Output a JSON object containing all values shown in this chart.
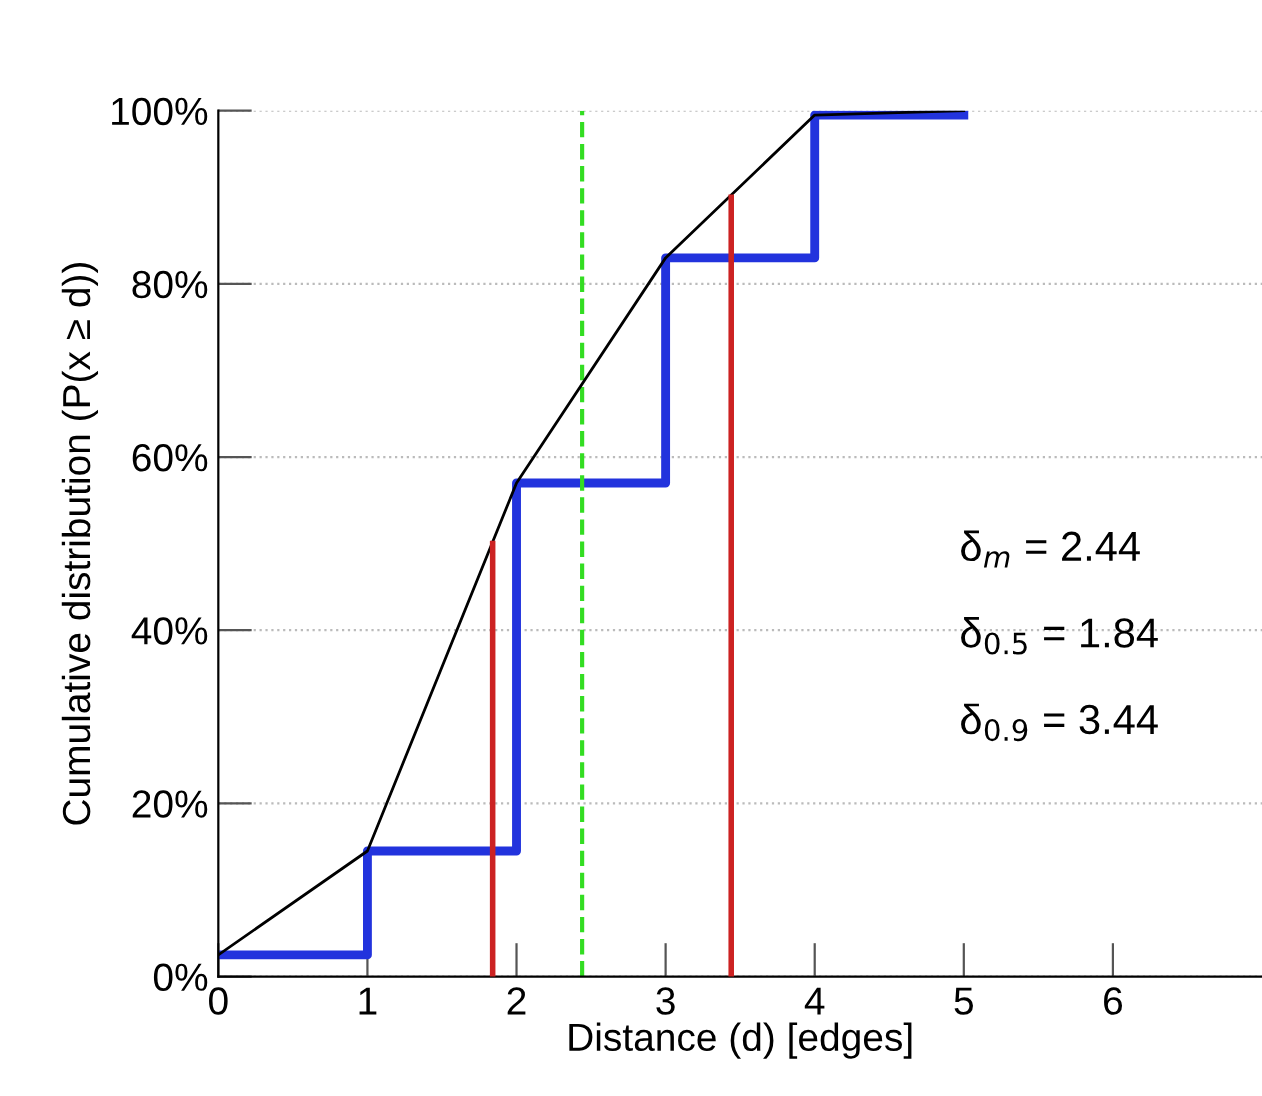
{
  "chart_data": {
    "type": "line",
    "xlabel": "Distance (d) [edges]",
    "ylabel": "Cumulative distribution (P(x ≥ d))",
    "series": [
      {
        "color": "#000000",
        "x": [
          0,
          1,
          2,
          3,
          4,
          5
        ],
        "values": [
          2.5,
          14.5,
          57,
          83,
          99.5,
          100
        ]
      },
      {
        "type": "step",
        "color": "#2233dd",
        "x": [
          0,
          1,
          2,
          3,
          4,
          5
        ],
        "values": [
          2.5,
          14.5,
          57,
          83,
          99.5,
          99.5
        ]
      },
      {
        "color": "#cc2222",
        "x": [
          1.84,
          1.84
        ],
        "values": [
          0,
          50
        ]
      },
      {
        "color": "#cc2222",
        "x": [
          3.44,
          3.44
        ],
        "values": [
          0,
          90
        ]
      }
    ],
    "ref_lines": [
      {
        "axis": "x",
        "value": 2.44,
        "color": "#33dd22",
        "line_style": "dashed"
      }
    ],
    "annotations": [
      "δ$_{m}$ = 2.44",
      "δ$_{0.5}$ = 1.84",
      "δ$_{0.9}$ = 3.44"
    ],
    "xlim": [
      0,
      7
    ],
    "ylim": [
      0,
      100
    ],
    "xticks": [
      0,
      1,
      2,
      3,
      4,
      5,
      6
    ],
    "yticks": [
      {
        "value": 0,
        "label": "0%"
      },
      {
        "value": 20,
        "label": "20%"
      },
      {
        "value": 40,
        "label": "40%"
      },
      {
        "value": 60,
        "label": "60%"
      },
      {
        "value": 80,
        "label": "80%"
      },
      {
        "value": 100,
        "label": "100%"
      }
    ],
    "grid": "y",
    "legend": false
  }
}
